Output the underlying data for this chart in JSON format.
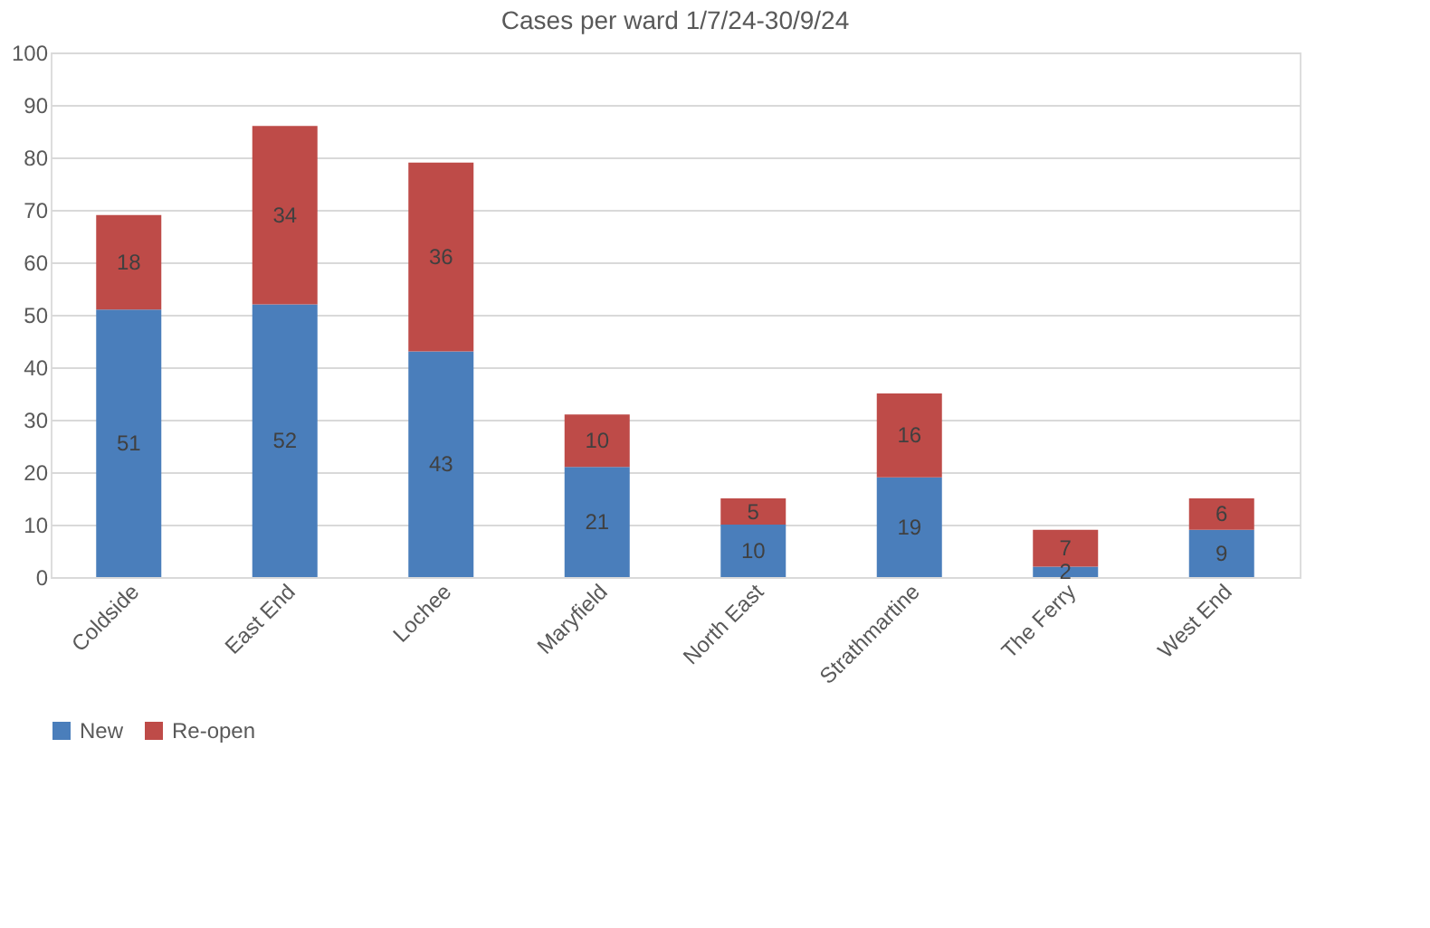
{
  "chart_data": {
    "type": "bar",
    "title": "Cases per ward 1/7/24-30/9/24",
    "stacked": true,
    "categories": [
      "Coldside",
      "East End",
      "Lochee",
      "Maryfield",
      "North East",
      "Strathmartine",
      "The Ferry",
      "West End"
    ],
    "series": [
      {
        "name": "New",
        "color": "#4a7ebb",
        "values": [
          51,
          52,
          43,
          21,
          10,
          19,
          2,
          9
        ]
      },
      {
        "name": "Re-open",
        "color": "#be4b48",
        "values": [
          18,
          34,
          36,
          10,
          5,
          16,
          7,
          6
        ]
      }
    ],
    "ylim": [
      0,
      100
    ],
    "yticks": [
      0,
      10,
      20,
      30,
      40,
      50,
      60,
      70,
      80,
      90,
      100
    ],
    "grid": "y",
    "legend": "bottom",
    "data_labels": true
  }
}
